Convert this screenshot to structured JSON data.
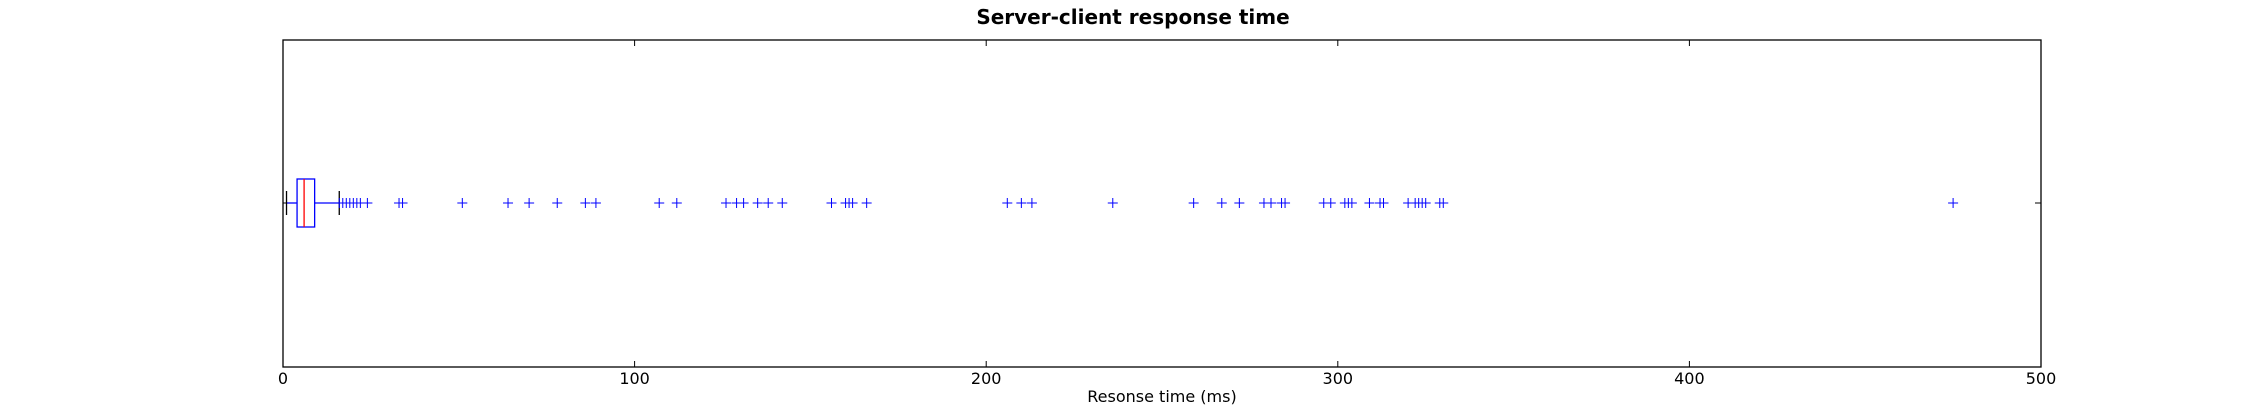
{
  "chart_data": {
    "type": "boxplot",
    "orientation": "horizontal",
    "title": "Server-client response time",
    "xlabel": "Resonse time (ms)",
    "ylabel": "",
    "xlim": [
      0,
      500
    ],
    "xticks": [
      0,
      100,
      200,
      300,
      400,
      500
    ],
    "grid": false,
    "box": {
      "whisker_low": 1,
      "q1": 4,
      "median": 6,
      "q3": 9,
      "whisker_high": 16
    },
    "outliers": [
      16,
      17,
      18,
      19,
      20,
      21,
      22,
      24,
      33,
      34,
      51,
      64,
      70,
      78,
      86,
      89,
      107,
      112,
      126,
      129,
      131,
      135,
      138,
      142,
      156,
      160,
      161,
      162,
      166,
      206,
      210,
      213,
      236,
      259,
      267,
      272,
      279,
      281,
      284,
      285,
      296,
      298,
      302,
      303,
      304,
      309,
      312,
      313,
      320,
      322,
      323,
      324,
      325,
      329,
      330,
      475
    ],
    "colors": {
      "box": "#0000ff",
      "median": "#ff0000",
      "outlier": "#0000ff",
      "axes": "#000000"
    }
  }
}
